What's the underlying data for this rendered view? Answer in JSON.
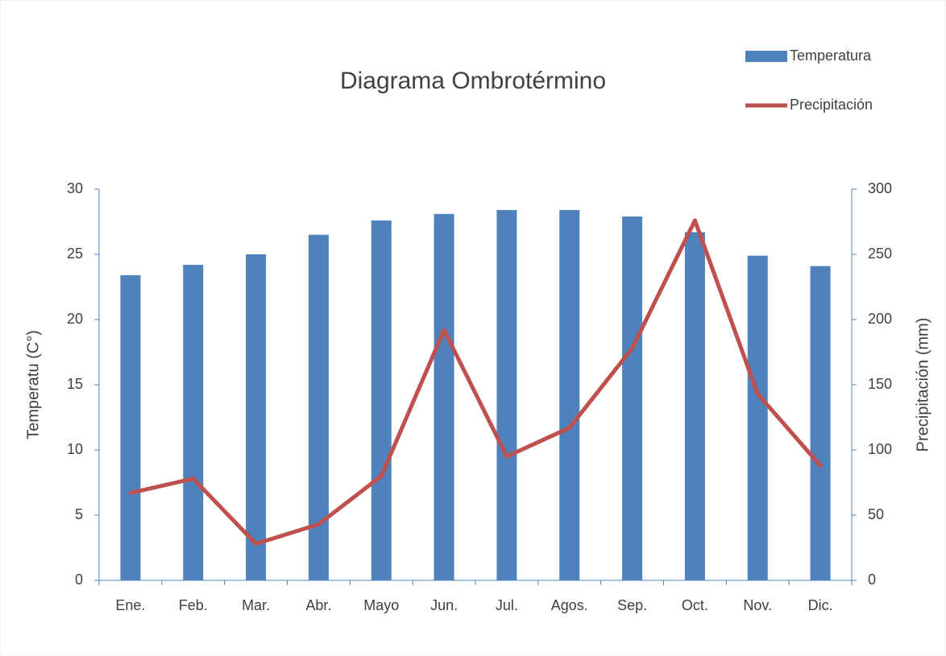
{
  "chart_data": {
    "type": "combo",
    "title": "Diagrama Ombrotérmino",
    "categories": [
      "Ene.",
      "Feb.",
      "Mar.",
      "Abr.",
      "Mayo",
      "Jun.",
      "Jul.",
      "Agos.",
      "Sep.",
      "Oct.",
      "Nov.",
      "Dic."
    ],
    "series": [
      {
        "name": "Temperatura",
        "type": "bar",
        "axis": "y",
        "color": "#4f81bd",
        "values": [
          23.4,
          24.2,
          25.0,
          26.5,
          27.6,
          28.1,
          28.4,
          28.4,
          27.9,
          26.7,
          24.9,
          24.1
        ]
      },
      {
        "name": "Precipitación",
        "type": "line",
        "axis": "y2",
        "color": "#c0504d",
        "values": [
          67,
          78,
          28,
          43,
          80,
          192,
          95,
          117,
          178,
          276,
          143,
          88
        ]
      }
    ],
    "ylabel": "Temperatu (C°)",
    "y2label": "Precipitación (mm)",
    "ylim": [
      0,
      30
    ],
    "yticks": [
      0,
      5,
      10,
      15,
      20,
      25,
      30
    ],
    "y2lim": [
      0,
      300
    ],
    "y2ticks": [
      0,
      50,
      100,
      150,
      200,
      250,
      300
    ],
    "legend": "top-right"
  }
}
